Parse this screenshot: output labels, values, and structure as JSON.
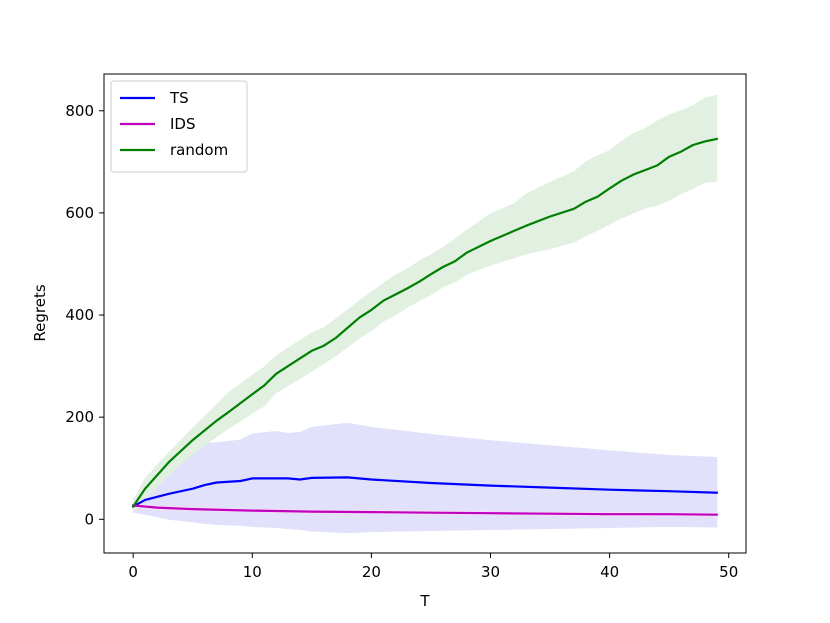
{
  "chart_data": {
    "type": "line",
    "xlabel": "T",
    "ylabel": "Regrets",
    "xlim": [
      -2.45,
      51.45
    ],
    "ylim": [
      -66,
      872
    ],
    "xticks": [
      0,
      10,
      20,
      30,
      40,
      50
    ],
    "yticks": [
      0,
      200,
      400,
      600,
      800
    ],
    "grid": false,
    "legend_position": "top-left",
    "series": [
      {
        "name": "TS",
        "color": "#0000ff",
        "band_color": "#e1e1fb",
        "x": [
          0,
          1,
          3,
          5,
          6,
          7,
          9,
          10,
          12,
          13,
          14,
          15,
          18,
          20,
          25,
          30,
          35,
          40,
          45,
          49
        ],
        "y": [
          25,
          38,
          50,
          60,
          67,
          72,
          75,
          80,
          80,
          80,
          78,
          81,
          82,
          78,
          71,
          66,
          62,
          58,
          55,
          52
        ],
        "upper": [
          38,
          70,
          105,
          135,
          148,
          150,
          155,
          167,
          172,
          168,
          170,
          180,
          188,
          180,
          166,
          154,
          144,
          134,
          125,
          121
        ],
        "lower": [
          14,
          10,
          0,
          -5,
          -8,
          -10,
          -12,
          -14,
          -16,
          -18,
          -20,
          -23,
          -26,
          -24,
          -22,
          -20,
          -18,
          -16,
          -14,
          -15
        ]
      },
      {
        "name": "IDS",
        "color": "#bf00bf",
        "band_color": "#f5dff5",
        "x": [
          0,
          2,
          5,
          10,
          15,
          20,
          25,
          30,
          35,
          40,
          45,
          49
        ],
        "y": [
          27,
          23,
          20,
          17,
          15,
          14,
          13,
          12,
          11,
          10,
          10,
          9
        ],
        "upper": [
          31,
          26,
          23,
          20,
          18,
          17,
          16,
          15,
          14,
          13,
          12,
          12
        ],
        "lower": [
          23,
          19,
          17,
          14,
          12,
          11,
          10,
          9,
          8,
          7,
          7,
          6
        ]
      },
      {
        "name": "random",
        "color": "#007f00",
        "band_color": "#e2f0e2",
        "x": [
          0,
          1,
          3,
          5,
          7,
          8,
          10,
          11,
          12,
          14,
          15,
          16,
          17,
          19,
          20,
          21,
          22,
          23,
          24,
          25,
          26,
          27,
          28,
          30,
          32,
          33,
          35,
          37,
          38,
          39,
          40,
          41,
          42,
          43,
          44,
          45,
          46,
          47,
          48,
          49
        ],
        "y": [
          25,
          60,
          112,
          155,
          193,
          210,
          245,
          262,
          285,
          315,
          330,
          340,
          355,
          395,
          410,
          428,
          440,
          452,
          465,
          480,
          494,
          505,
          522,
          545,
          565,
          575,
          593,
          608,
          622,
          632,
          648,
          663,
          675,
          684,
          693,
          710,
          720,
          733,
          740,
          745
        ],
        "upper": [
          35,
          80,
          130,
          178,
          224,
          248,
          282,
          298,
          320,
          350,
          365,
          375,
          392,
          428,
          445,
          462,
          478,
          490,
          505,
          518,
          532,
          548,
          566,
          598,
          618,
          637,
          660,
          680,
          700,
          712,
          722,
          740,
          755,
          765,
          780,
          792,
          800,
          810,
          825,
          830
        ],
        "lower": [
          15,
          40,
          88,
          128,
          162,
          178,
          208,
          222,
          248,
          276,
          290,
          305,
          320,
          355,
          370,
          388,
          400,
          415,
          428,
          440,
          455,
          465,
          480,
          498,
          512,
          520,
          530,
          543,
          556,
          566,
          578,
          590,
          600,
          610,
          615,
          625,
          638,
          648,
          660,
          662
        ]
      }
    ]
  }
}
